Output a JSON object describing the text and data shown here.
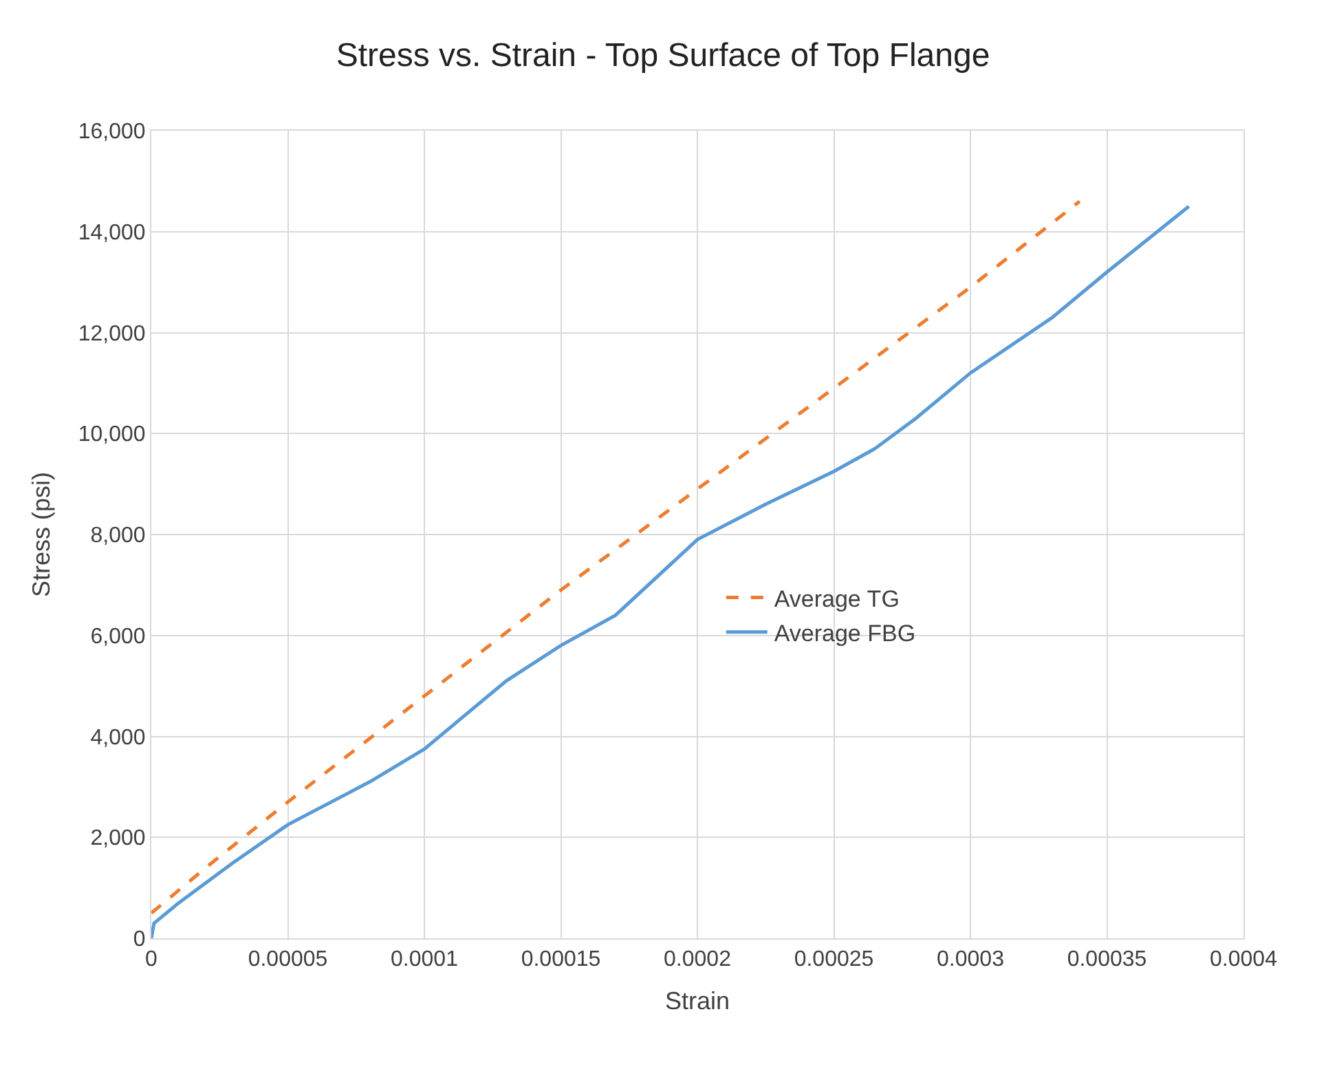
{
  "chart_data": {
    "type": "line",
    "title": "Stress vs. Strain - Top Surface of Top Flange",
    "xlabel": "Strain",
    "ylabel": "Stress (psi)",
    "xlim": [
      0,
      0.0004
    ],
    "xticks": [
      0,
      {
        "value": 5e-05,
        "label": "0.00005"
      },
      0.0001,
      0.00015,
      0.0002,
      0.00025,
      0.0003,
      0.00035,
      0.0004
    ],
    "ylim": [
      0,
      16000
    ],
    "yticks": [
      {
        "value": 0,
        "label": "0"
      },
      {
        "value": 2000,
        "label": "2,000"
      },
      {
        "value": 4000,
        "label": "4,000"
      },
      {
        "value": 6000,
        "label": "6,000"
      },
      {
        "value": 8000,
        "label": "8,000"
      },
      {
        "value": 10000,
        "label": "10,000"
      },
      {
        "value": 12000,
        "label": "12,000"
      },
      {
        "value": 14000,
        "label": "14,000"
      },
      {
        "value": 16000,
        "label": "16,000"
      }
    ],
    "grid": true,
    "legend": "right",
    "marker": "none",
    "series": [
      {
        "name": "Average TG",
        "color": "#ed7d31",
        "line_style": "dashed",
        "x": [
          0,
          2e-05,
          5e-05,
          0.0001,
          0.00015,
          0.0002,
          0.00025,
          0.0003,
          0.00034
        ],
        "values": [
          500,
          1400,
          2700,
          4800,
          6900,
          8900,
          10900,
          12900,
          14600
        ]
      },
      {
        "name": "Average FBG",
        "color": "#5b9bd5",
        "line_style": "solid",
        "x": [
          0,
          1e-06,
          1e-05,
          3e-05,
          5e-05,
          8e-05,
          0.0001,
          0.00011,
          0.00013,
          0.00015,
          0.00017,
          0.0002,
          0.000225,
          0.00025,
          0.000265,
          0.00028,
          0.0003,
          0.00033,
          0.00035,
          0.00038
        ],
        "values": [
          0,
          300,
          700,
          1500,
          2250,
          3100,
          3750,
          4200,
          5100,
          5800,
          6400,
          7900,
          8600,
          9250,
          9700,
          10300,
          11200,
          12300,
          13200,
          14500
        ]
      }
    ]
  }
}
